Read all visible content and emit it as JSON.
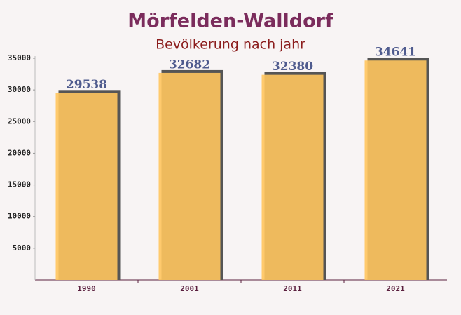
{
  "chart_data": {
    "type": "bar",
    "title": "Mörfelden-Walldorf",
    "subtitle": "Bevölkerung nach jahr",
    "categories": [
      "1990",
      "2001",
      "2011",
      "2021"
    ],
    "values": [
      29538,
      32682,
      32380,
      34641
    ],
    "color": "#ffc55e",
    "ylim": [
      0,
      35000
    ],
    "yticks": [
      5000,
      10000,
      15000,
      20000,
      25000,
      30000,
      35000
    ],
    "grid": false
  }
}
